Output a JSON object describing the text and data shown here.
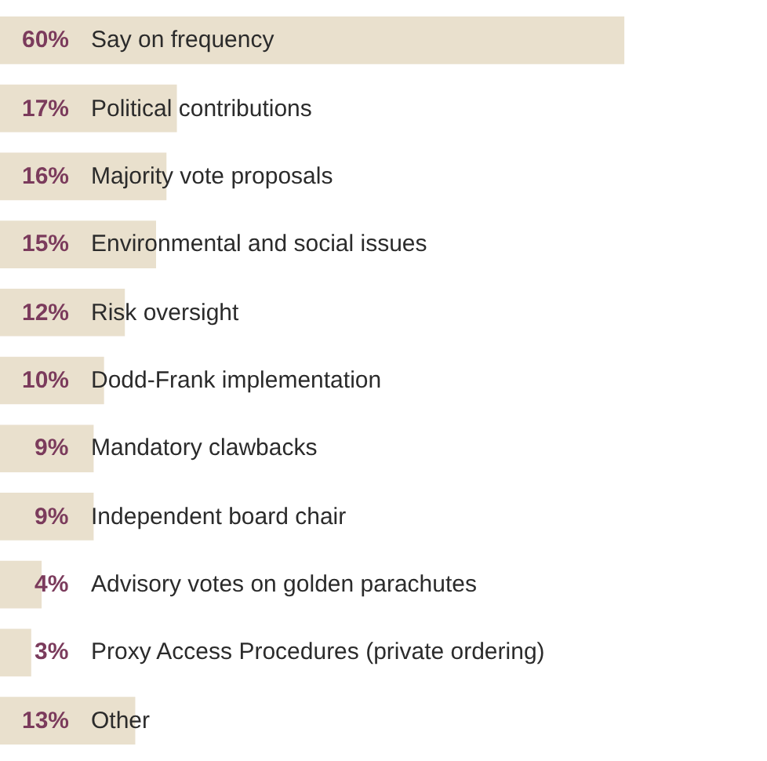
{
  "chart_data": {
    "type": "bar",
    "orientation": "horizontal",
    "categories": [
      "Say on frequency",
      "Political contributions",
      "Majority vote proposals",
      "Environmental and social issues",
      "Risk oversight",
      "Dodd-Frank implementation",
      "Mandatory clawbacks",
      "Independent board chair",
      "Advisory votes on golden parachutes",
      "Proxy Access Procedures (private ordering)",
      "Other"
    ],
    "values": [
      60,
      17,
      16,
      15,
      12,
      10,
      9,
      9,
      4,
      3,
      13
    ],
    "value_labels": [
      "60%",
      "17%",
      "16%",
      "15%",
      "12%",
      "10%",
      "9%",
      "9%",
      "4%",
      "3%",
      "13%"
    ],
    "color": "#e9e0cd"
  }
}
